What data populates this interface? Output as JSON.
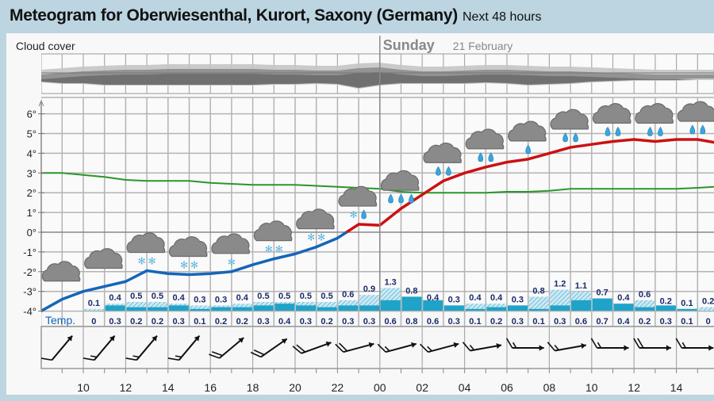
{
  "header": {
    "title": "Meteogram for Oberwiesenthal, Kurort, Saxony (Germany)",
    "subtitle": "Next 48 hours"
  },
  "colors": {
    "background": "#bcd5e1",
    "temp_below_zero": "#1565b8",
    "temp_above_zero": "#cc1111",
    "secondary_line": "#2a962a",
    "precip": "#1fa3c8",
    "precip_text": "#1a2a6c"
  },
  "chart_data": {
    "type": "line",
    "title": "Meteogram for Oberwiesenthal, Kurort, Saxony (Germany)",
    "cloud_cover_label": "Cloud cover",
    "day_label": {
      "day": "Sunday",
      "date": "21 February",
      "hour": 24
    },
    "x_ticks": [
      {
        "hour": 10,
        "label": "10"
      },
      {
        "hour": 12,
        "label": "12"
      },
      {
        "hour": 14,
        "label": "14"
      },
      {
        "hour": 16,
        "label": "16"
      },
      {
        "hour": 18,
        "label": "18"
      },
      {
        "hour": 20,
        "label": "20"
      },
      {
        "hour": 22,
        "label": "22"
      },
      {
        "hour": 24,
        "label": "00"
      },
      {
        "hour": 26,
        "label": "02"
      },
      {
        "hour": 28,
        "label": "04"
      },
      {
        "hour": 30,
        "label": "06"
      },
      {
        "hour": 32,
        "label": "08"
      },
      {
        "hour": 34,
        "label": "10"
      },
      {
        "hour": 36,
        "label": "12"
      },
      {
        "hour": 38,
        "label": "14"
      }
    ],
    "y_ticks": [
      "6°",
      "5°",
      "4°",
      "3°",
      "2°",
      "1°",
      "0°",
      "-1°",
      "-2°",
      "-3°",
      "-4°"
    ],
    "ylim": [
      -4,
      6
    ],
    "temperature": {
      "hours": [
        8,
        9,
        10,
        11,
        12,
        13,
        14,
        15,
        16,
        17,
        18,
        19,
        20,
        21,
        22,
        23,
        24,
        25,
        26,
        27,
        28,
        29,
        30,
        31,
        32,
        33,
        34,
        35,
        36,
        37,
        38,
        39,
        39.8
      ],
      "values": [
        -4.0,
        -3.4,
        -3.0,
        -2.75,
        -2.5,
        -1.95,
        -2.1,
        -2.15,
        -2.1,
        -2.0,
        -1.65,
        -1.35,
        -1.1,
        -0.75,
        -0.3,
        0.4,
        0.35,
        1.2,
        1.9,
        2.6,
        3.0,
        3.3,
        3.55,
        3.7,
        4.0,
        4.3,
        4.45,
        4.6,
        4.7,
        4.6,
        4.7,
        4.7,
        4.55
      ]
    },
    "secondary_line": {
      "hours": [
        8,
        9,
        10,
        11,
        12,
        13,
        14,
        15,
        16,
        17,
        18,
        19,
        20,
        21,
        22,
        23,
        24,
        25,
        26,
        27,
        28,
        29,
        30,
        31,
        32,
        33,
        34,
        35,
        36,
        37,
        38,
        39,
        39.8
      ],
      "values": [
        3.0,
        3.0,
        2.9,
        2.8,
        2.65,
        2.6,
        2.6,
        2.6,
        2.5,
        2.45,
        2.4,
        2.4,
        2.4,
        2.35,
        2.3,
        2.25,
        2.2,
        2.05,
        2.0,
        2.0,
        2.0,
        2.0,
        2.05,
        2.05,
        2.1,
        2.2,
        2.2,
        2.2,
        2.2,
        2.2,
        2.2,
        2.25,
        2.3
      ]
    },
    "precipitation": {
      "start_hour": 10,
      "max_mm": [
        0.1,
        0.4,
        0.5,
        0.5,
        0.4,
        0.3,
        0.3,
        0.4,
        0.5,
        0.5,
        0.5,
        0.5,
        0.6,
        0.9,
        1.3,
        0.8,
        0.4,
        0.3,
        0.4,
        0.4,
        0.3,
        0.8,
        1.2,
        1.1,
        0.7,
        0.4,
        0.6,
        0.2,
        0.1,
        0.2
      ],
      "min_mm": [
        0,
        0.3,
        0.2,
        0.2,
        0.3,
        0.1,
        0.2,
        0.2,
        0.3,
        0.4,
        0.3,
        0.2,
        0.3,
        0.3,
        0.6,
        0.8,
        0.6,
        0.3,
        0.1,
        0.2,
        0.3,
        0.1,
        0.3,
        0.6,
        0.7,
        0.4,
        0.2,
        0.3,
        0.1,
        0
      ]
    },
    "row_label": "Temp.",
    "symbols": [
      {
        "hour": 9,
        "icon": "cloud-icon",
        "snow": 0,
        "rain": 0
      },
      {
        "hour": 11,
        "icon": "cloud-icon",
        "snow": 0,
        "rain": 0
      },
      {
        "hour": 13,
        "icon": "snow-cloud-icon",
        "snow": 2,
        "rain": 0
      },
      {
        "hour": 15,
        "icon": "snow-cloud-icon",
        "snow": 2,
        "rain": 0
      },
      {
        "hour": 17,
        "icon": "snow-cloud-icon",
        "snow": 1,
        "rain": 0
      },
      {
        "hour": 19,
        "icon": "snow-cloud-icon",
        "snow": 2,
        "rain": 0
      },
      {
        "hour": 21,
        "icon": "snow-cloud-icon",
        "snow": 2,
        "rain": 0
      },
      {
        "hour": 23,
        "icon": "sleet-cloud-icon",
        "snow": 1,
        "rain": 1
      },
      {
        "hour": 25,
        "icon": "rain-cloud-icon",
        "snow": 0,
        "rain": 3
      },
      {
        "hour": 27,
        "icon": "rain-cloud-icon",
        "snow": 0,
        "rain": 2
      },
      {
        "hour": 29,
        "icon": "rain-cloud-icon",
        "snow": 0,
        "rain": 2
      },
      {
        "hour": 31,
        "icon": "rain-cloud-icon",
        "snow": 0,
        "rain": 1
      },
      {
        "hour": 33,
        "icon": "rain-cloud-icon",
        "snow": 0,
        "rain": 2
      },
      {
        "hour": 35,
        "icon": "rain-cloud-icon",
        "snow": 0,
        "rain": 2
      },
      {
        "hour": 37,
        "icon": "rain-cloud-icon",
        "snow": 0,
        "rain": 2
      },
      {
        "hour": 39,
        "icon": "rain-cloud-icon",
        "snow": 0,
        "rain": 2
      }
    ],
    "wind": {
      "hours": [
        9,
        11,
        13,
        15,
        17,
        19,
        21,
        23,
        25,
        27,
        29,
        31,
        33,
        35,
        37,
        39
      ],
      "from_direction_deg": [
        220,
        220,
        220,
        220,
        230,
        235,
        250,
        255,
        255,
        255,
        260,
        270,
        260,
        270,
        270,
        270
      ],
      "barbs": [
        1,
        1.5,
        1.5,
        1.5,
        2,
        2,
        2,
        2,
        1.5,
        1.5,
        1.5,
        1.5,
        1.5,
        1.5,
        2,
        1.5
      ]
    }
  }
}
